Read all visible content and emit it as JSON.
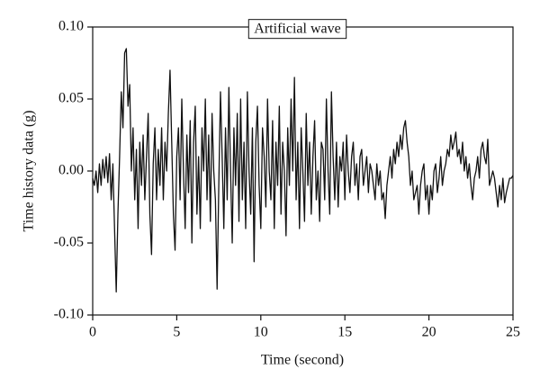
{
  "chart_data": {
    "type": "line",
    "xlabel": "Time (second)",
    "ylabel": "Time history data (g)",
    "xlim": [
      0,
      25
    ],
    "ylim": [
      -0.1,
      0.1
    ],
    "xticks": [
      0,
      5,
      10,
      15,
      20,
      25
    ],
    "yticks": [
      {
        "value": 0.1,
        "label": "0.10"
      },
      0.05,
      {
        "value": 0,
        "label": "0.00"
      },
      -0.05,
      {
        "value": -0.1,
        "label": "-0.10"
      }
    ],
    "legend": "top",
    "x": [
      0,
      0.1,
      0.2,
      0.3,
      0.4,
      0.5,
      0.6,
      0.7,
      0.8,
      0.9,
      1,
      1.1,
      1.2,
      1.3,
      1.4,
      1.5,
      1.6,
      1.7,
      1.8,
      1.9,
      2,
      2.1,
      2.2,
      2.3,
      2.4,
      2.5,
      2.6,
      2.7,
      2.8,
      2.9,
      3,
      3.1,
      3.2,
      3.3,
      3.4,
      3.5,
      3.6,
      3.7,
      3.8,
      3.9,
      4,
      4.1,
      4.2,
      4.3,
      4.4,
      4.5,
      4.6,
      4.7,
      4.8,
      4.9,
      5,
      5.1,
      5.2,
      5.3,
      5.4,
      5.5,
      5.6,
      5.7,
      5.8,
      5.9,
      6,
      6.1,
      6.2,
      6.3,
      6.4,
      6.5,
      6.6,
      6.7,
      6.8,
      6.9,
      7,
      7.1,
      7.2,
      7.3,
      7.4,
      7.5,
      7.6,
      7.7,
      7.8,
      7.9,
      8,
      8.1,
      8.2,
      8.3,
      8.4,
      8.5,
      8.6,
      8.7,
      8.8,
      8.9,
      9,
      9.1,
      9.2,
      9.3,
      9.4,
      9.5,
      9.6,
      9.7,
      9.8,
      9.9,
      10,
      10.1,
      10.2,
      10.3,
      10.4,
      10.5,
      10.6,
      10.7,
      10.8,
      10.9,
      11,
      11.1,
      11.2,
      11.3,
      11.4,
      11.5,
      11.6,
      11.7,
      11.8,
      11.9,
      12,
      12.1,
      12.2,
      12.3,
      12.4,
      12.5,
      12.6,
      12.7,
      12.8,
      12.9,
      13,
      13.1,
      13.2,
      13.3,
      13.4,
      13.5,
      13.6,
      13.7,
      13.8,
      13.9,
      14,
      14.1,
      14.2,
      14.3,
      14.4,
      14.5,
      14.6,
      14.7,
      14.8,
      14.9,
      15,
      15.1,
      15.2,
      15.3,
      15.4,
      15.5,
      15.6,
      15.7,
      15.8,
      15.9,
      16,
      16.1,
      16.2,
      16.3,
      16.4,
      16.5,
      16.6,
      16.7,
      16.8,
      16.9,
      17,
      17.1,
      17.2,
      17.3,
      17.4,
      17.5,
      17.6,
      17.7,
      17.8,
      17.9,
      18,
      18.1,
      18.2,
      18.3,
      18.4,
      18.5,
      18.6,
      18.7,
      18.8,
      18.9,
      19,
      19.1,
      19.2,
      19.3,
      19.4,
      19.5,
      19.6,
      19.7,
      19.8,
      19.9,
      20,
      20.1,
      20.2,
      20.3,
      20.4,
      20.5,
      20.6,
      20.7,
      20.8,
      20.9,
      21,
      21.1,
      21.2,
      21.3,
      21.4,
      21.5,
      21.6,
      21.7,
      21.8,
      21.9,
      22,
      22.1,
      22.2,
      22.3,
      22.4,
      22.5,
      22.6,
      22.7,
      22.8,
      22.9,
      23,
      23.1,
      23.2,
      23.3,
      23.4,
      23.5,
      23.6,
      23.7,
      23.8,
      23.9,
      24,
      24.1,
      24.2,
      24.3,
      24.4,
      24.5,
      24.6,
      24.7,
      24.8,
      24.9,
      25
    ],
    "series": [
      {
        "name": "Artificial wave",
        "color": "#111111",
        "values": [
          -0.005,
          -0.01,
          0.0,
          -0.015,
          0.005,
          -0.01,
          0.008,
          -0.005,
          0.01,
          -0.008,
          0.012,
          -0.02,
          0.005,
          -0.04,
          -0.084,
          -0.03,
          0.01,
          0.055,
          0.03,
          0.082,
          0.085,
          0.045,
          0.06,
          0.0,
          0.03,
          -0.02,
          0.015,
          -0.04,
          0.02,
          -0.01,
          0.025,
          -0.02,
          0.01,
          0.04,
          -0.03,
          -0.058,
          0.005,
          0.03,
          -0.02,
          0.015,
          -0.01,
          0.03,
          -0.02,
          0.02,
          0.0,
          0.04,
          0.07,
          0.02,
          -0.03,
          -0.055,
          0.01,
          0.03,
          -0.02,
          0.05,
          0.0,
          -0.04,
          0.025,
          -0.015,
          0.035,
          -0.05,
          0.02,
          0.045,
          -0.03,
          0.01,
          -0.04,
          0.03,
          0.0,
          0.05,
          -0.02,
          0.025,
          -0.035,
          0.04,
          0.0,
          -0.02,
          -0.082,
          -0.01,
          0.055,
          0.01,
          -0.04,
          0.03,
          -0.02,
          0.058,
          0.0,
          -0.05,
          0.03,
          -0.01,
          0.04,
          -0.035,
          0.05,
          -0.02,
          0.02,
          -0.04,
          0.055,
          0.0,
          -0.03,
          0.03,
          -0.063,
          0.02,
          0.045,
          -0.01,
          -0.04,
          0.03,
          0.01,
          -0.025,
          0.05,
          0.0,
          -0.02,
          0.035,
          -0.04,
          0.02,
          -0.01,
          0.045,
          -0.03,
          0.02,
          0.0,
          -0.045,
          0.03,
          -0.01,
          0.05,
          0.0,
          0.065,
          -0.02,
          0.02,
          -0.04,
          0.03,
          0.0,
          -0.035,
          0.04,
          -0.01,
          0.02,
          -0.03,
          0.01,
          0.035,
          -0.02,
          0.0,
          -0.035,
          0.02,
          0.015,
          -0.02,
          0.05,
          0.0,
          -0.03,
          0.055,
          0.01,
          -0.02,
          0.02,
          -0.025,
          0.01,
          0.0,
          0.02,
          -0.02,
          0.025,
          0.0,
          -0.015,
          0.01,
          0.02,
          -0.01,
          0.005,
          -0.02,
          0.01,
          0.015,
          -0.01,
          0.0,
          0.01,
          -0.015,
          0.005,
          0.0,
          -0.01,
          -0.02,
          0.005,
          -0.01,
          0.0,
          -0.02,
          -0.015,
          -0.033,
          -0.01,
          0.0,
          0.01,
          -0.005,
          0.015,
          0.005,
          0.02,
          0.01,
          0.025,
          0.015,
          0.03,
          0.035,
          0.02,
          0.01,
          -0.01,
          0.0,
          -0.02,
          -0.015,
          -0.01,
          -0.03,
          -0.01,
          0.0,
          0.005,
          -0.02,
          -0.01,
          -0.03,
          -0.01,
          -0.02,
          0.0,
          0.005,
          -0.015,
          -0.005,
          0.01,
          -0.01,
          0.0,
          0.005,
          0.015,
          0.01,
          0.025,
          0.015,
          0.02,
          0.027,
          0.01,
          0.015,
          0.005,
          0.02,
          0.0,
          0.01,
          -0.005,
          0.005,
          -0.01,
          -0.02,
          -0.005,
          0.0,
          0.01,
          -0.005,
          0.015,
          0.02,
          0.01,
          0.005,
          0.022,
          -0.01,
          -0.005,
          0.0,
          -0.005,
          -0.015,
          -0.025,
          -0.01,
          -0.02,
          -0.005,
          -0.022,
          -0.015,
          -0.01,
          -0.005,
          -0.005,
          -0.003
        ]
      }
    ]
  }
}
